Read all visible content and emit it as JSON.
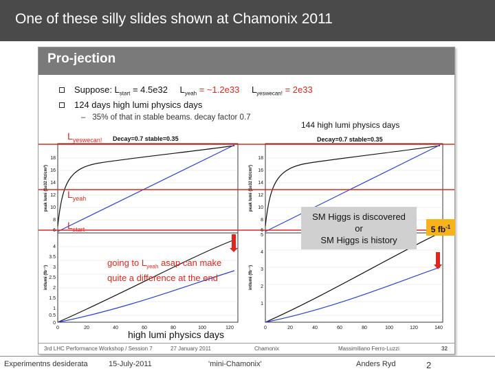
{
  "slide": {
    "title": "One of these silly slides shown at Chamonix 2011"
  },
  "inner_slide": {
    "title": "Pro-jection",
    "bullet1": {
      "suppose": "Suppose: L",
      "start_sub": "start",
      "start_val": " = 4.5e32",
      "yeah": "L",
      "yeah_sub": "yeah",
      "yeah_val": " = ~1.2e33",
      "yeswecan": "L",
      "yeswecan_sub": "yeswecan!",
      "yeswecan_val": " = 2e33"
    },
    "bullet2": "124 days high lumi physics days",
    "sub_bullet": "35% of that in stable beams.  decay factor 0.7",
    "days_144": "144 high lumi physics days",
    "label_yeswecan": "L",
    "label_yeswecan_sub": "yeswecan!",
    "label_yeah": "L",
    "label_yeah_sub": "yeah",
    "label_start": "L",
    "label_start_sub": "start",
    "decay_label": "Decay=0.7  stable=0.35",
    "going_line1_a": "going to L",
    "going_line1_sub": "yeah",
    "going_line1_b": " asap can make",
    "going_line2": "quite a difference at  the end",
    "x_axis_label": "high lumi physics days",
    "ylabel_peak": "peak lumi (1e32 Hz/cm²)",
    "ylabel_intlumi": "intlumi (fb⁻¹)",
    "higgs_box": {
      "line1": "SM Higgs is discovered",
      "line2": "or",
      "line3": "SM Higgs is history"
    },
    "fb_box": "5 fb",
    "fb_sup": "-1",
    "footer": {
      "workshop": "3rd LHC Performance Workshop / Session 7",
      "date": "27 January 2011",
      "venue": "Chamonix",
      "author": "Massimiliano Ferro-Luzzi",
      "page": "32"
    }
  },
  "page_footer": {
    "left": "Experimentns desiderata",
    "date": "15-July-2011",
    "event": "'mini-Chamonix'",
    "author": "Anders Ryd",
    "page": "2"
  },
  "chart_data": [
    {
      "type": "line",
      "panel": "left",
      "ylabel": "peak lumi (1e32 Hz/cm²)",
      "ytick_labels": [
        "6",
        "8",
        "10",
        "12",
        "14",
        "16",
        "18"
      ],
      "series": []
    },
    {
      "type": "line",
      "panel": "left",
      "ylabel": "intlumi (fb⁻¹)",
      "xlabel": "high lumi physics days",
      "xtick_labels": [
        "0",
        "20",
        "40",
        "60",
        "80",
        "100",
        "120"
      ],
      "ytick_labels": [
        "0",
        "0.5",
        "1",
        "1.5",
        "2",
        "2.5",
        "3",
        "3.5",
        "4"
      ],
      "series": []
    },
    {
      "type": "line",
      "panel": "right",
      "ylabel": "peak lumi (1e32 Hz/cm²)",
      "ytick_labels": [
        "6",
        "8",
        "10",
        "12",
        "14",
        "16",
        "18"
      ],
      "series": []
    },
    {
      "type": "line",
      "panel": "right",
      "ylabel": "intlumi (fb⁻¹)",
      "xtick_labels": [
        "0",
        "20",
        "40",
        "60",
        "80",
        "100",
        "120",
        "140"
      ],
      "ytick_labels": [
        "1",
        "2",
        "3",
        "4",
        "5"
      ],
      "series": []
    }
  ],
  "colors": {
    "header_dark": "#4a4a4a",
    "inner_header": "#7a7a7a",
    "red": "#e0261c",
    "blue_curve": "#2a3fd6",
    "black_curve": "#111111",
    "fb_box": "#f6b41a",
    "higgs_box": "#d0d0d0"
  }
}
